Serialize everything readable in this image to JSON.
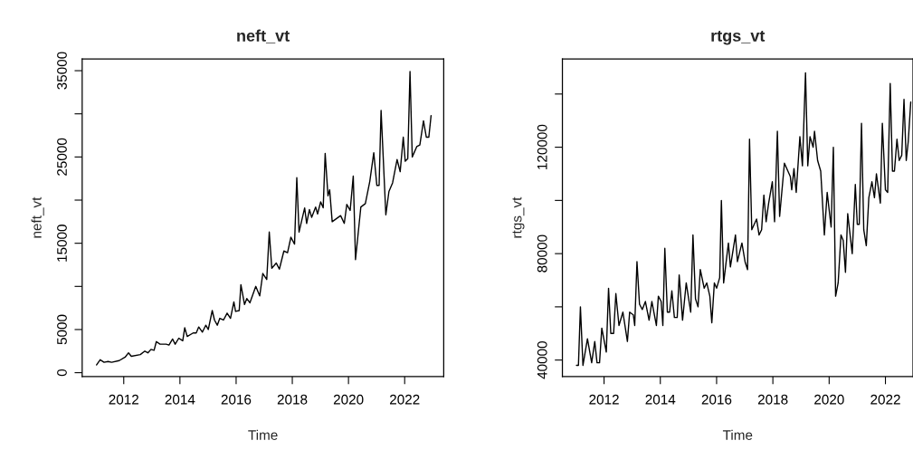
{
  "chart_data": [
    {
      "type": "line",
      "title": "neft_vt",
      "xlabel": "Time",
      "ylabel": "neft_vt",
      "grid": false,
      "line_style": "solid",
      "marker": "none",
      "xlim": [
        2010.52,
        2023.39
      ],
      "xticks": [
        2012,
        2014,
        2016,
        2018,
        2020,
        2022
      ],
      "ylim": [
        -460,
        36360
      ],
      "yticks": [
        0,
        5000,
        {
          "value": 10000,
          "label": null
        },
        15000,
        {
          "value": 20000,
          "label": null
        },
        25000,
        {
          "value": 30000,
          "label": null
        },
        35000
      ],
      "series": [
        {
          "color": "#000000",
          "x": [
            2011.03,
            2011.16,
            2011.3,
            2011.44,
            2011.57,
            2011.84,
            2012.05,
            2012.17,
            2012.27,
            2012.59,
            2012.75,
            2012.86,
            2012.97,
            2013.08,
            2013.16,
            2013.29,
            2013.51,
            2013.61,
            2013.74,
            2013.83,
            2013.96,
            2014.1,
            2014.17,
            2014.26,
            2014.47,
            2014.58,
            2014.67,
            2014.8,
            2014.92,
            2015.01,
            2015.15,
            2015.23,
            2015.33,
            2015.42,
            2015.55,
            2015.68,
            2015.8,
            2015.92,
            2015.98,
            2016.11,
            2016.17,
            2016.3,
            2016.38,
            2016.49,
            2016.7,
            2016.84,
            2016.95,
            2017.09,
            2017.18,
            2017.27,
            2017.43,
            2017.54,
            2017.7,
            2017.83,
            2017.95,
            2018.08,
            2018.16,
            2018.24,
            2018.44,
            2018.51,
            2018.61,
            2018.69,
            2018.83,
            2018.9,
            2019.01,
            2019.1,
            2019.17,
            2019.27,
            2019.33,
            2019.42,
            2019.72,
            2019.85,
            2019.94,
            2020.06,
            2020.17,
            2020.25,
            2020.44,
            2020.6,
            2020.76,
            2020.9,
            2021.01,
            2021.09,
            2021.16,
            2021.33,
            2021.44,
            2021.57,
            2021.73,
            2021.84,
            2021.95,
            2022.02,
            2022.11,
            2022.19,
            2022.27,
            2022.43,
            2022.54,
            2022.67,
            2022.77,
            2022.86,
            2022.94
          ],
          "values": [
            900,
            1500,
            1200,
            1300,
            1200,
            1400,
            1800,
            2300,
            1900,
            2100,
            2500,
            2300,
            2700,
            2600,
            3600,
            3300,
            3300,
            3200,
            3900,
            3300,
            4000,
            3700,
            5200,
            4200,
            4600,
            4600,
            5300,
            4700,
            5500,
            5000,
            7200,
            6100,
            5500,
            6300,
            6100,
            6900,
            6300,
            8200,
            7100,
            7200,
            10200,
            7900,
            8600,
            8100,
            10000,
            8900,
            11500,
            10800,
            16300,
            12100,
            12700,
            12000,
            14100,
            13900,
            15700,
            14900,
            22600,
            16300,
            19100,
            17300,
            18900,
            18000,
            19200,
            18400,
            19800,
            19100,
            25400,
            20500,
            21200,
            17500,
            18200,
            17300,
            19500,
            18800,
            22800,
            13100,
            19200,
            19600,
            22200,
            25500,
            21700,
            21700,
            30400,
            18300,
            21000,
            22000,
            24700,
            23300,
            27300,
            24500,
            24800,
            34900,
            25000,
            26200,
            26400,
            29200,
            27300,
            27300,
            29800
          ]
        }
      ]
    },
    {
      "type": "line",
      "title": "rtgs_vt",
      "xlabel": "Time",
      "ylabel": "rtgs_vt",
      "grid": false,
      "line_style": "solid",
      "marker": "none",
      "xlim": [
        2010.52,
        2022.98
      ],
      "xticks": [
        2012,
        2014,
        2016,
        2018,
        2020,
        2022
      ],
      "ylim": [
        33760,
        153180
      ],
      "yticks": [
        40000,
        {
          "value": 60000,
          "label": null
        },
        80000,
        {
          "value": 100000,
          "label": null
        },
        120000,
        {
          "value": 140000,
          "label": null
        }
      ],
      "series": [
        {
          "color": "#000000",
          "x": [
            2011.02,
            2011.09,
            2011.16,
            2011.25,
            2011.41,
            2011.56,
            2011.67,
            2011.75,
            2011.84,
            2011.92,
            2012.08,
            2012.16,
            2012.24,
            2012.34,
            2012.42,
            2012.53,
            2012.67,
            2012.83,
            2012.91,
            2013.04,
            2013.09,
            2013.17,
            2013.26,
            2013.36,
            2013.47,
            2013.6,
            2013.7,
            2013.86,
            2013.93,
            2014.03,
            2014.09,
            2014.16,
            2014.25,
            2014.33,
            2014.41,
            2014.5,
            2014.6,
            2014.67,
            2014.79,
            2014.92,
            2015.08,
            2015.16,
            2015.25,
            2015.34,
            2015.42,
            2015.56,
            2015.65,
            2015.76,
            2015.83,
            2015.92,
            2016.0,
            2016.11,
            2016.17,
            2016.25,
            2016.42,
            2016.49,
            2016.67,
            2016.74,
            2016.9,
            2017.01,
            2017.1,
            2017.17,
            2017.25,
            2017.42,
            2017.51,
            2017.6,
            2017.68,
            2017.76,
            2017.85,
            2017.98,
            2018.06,
            2018.16,
            2018.24,
            2018.41,
            2018.62,
            2018.67,
            2018.75,
            2018.83,
            2018.96,
            2019.05,
            2019.16,
            2019.24,
            2019.32,
            2019.43,
            2019.48,
            2019.59,
            2019.7,
            2019.83,
            2019.93,
            2020.07,
            2020.15,
            2020.23,
            2020.32,
            2020.42,
            2020.5,
            2020.58,
            2020.66,
            2020.82,
            2020.93,
            2021.0,
            2021.07,
            2021.15,
            2021.23,
            2021.32,
            2021.41,
            2021.52,
            2021.61,
            2021.68,
            2021.82,
            2021.89,
            2022.0,
            2022.08,
            2022.17,
            2022.25,
            2022.32,
            2022.41,
            2022.49,
            2022.58,
            2022.66,
            2022.74,
            2022.81,
            2022.9
          ],
          "values": [
            38000,
            38000,
            60000,
            38000,
            48000,
            39000,
            47000,
            39000,
            39000,
            52000,
            43000,
            67000,
            50000,
            50000,
            65000,
            53000,
            58000,
            47000,
            58000,
            57000,
            53000,
            77000,
            61000,
            59000,
            62000,
            55000,
            62000,
            53000,
            64000,
            62000,
            53000,
            82000,
            58000,
            58000,
            66000,
            56000,
            56000,
            72000,
            55000,
            69000,
            58000,
            87000,
            63000,
            60000,
            74000,
            67000,
            69000,
            64000,
            54000,
            69000,
            67000,
            71000,
            100000,
            69000,
            84000,
            75000,
            87000,
            77000,
            84000,
            77000,
            74000,
            123000,
            89000,
            93000,
            87000,
            89000,
            102000,
            92000,
            99000,
            107000,
            92000,
            126000,
            94000,
            114000,
            109000,
            104000,
            112000,
            103000,
            124000,
            113000,
            148000,
            113000,
            124000,
            120000,
            126000,
            115000,
            111000,
            87000,
            103000,
            90000,
            120000,
            64000,
            69000,
            87000,
            85000,
            73000,
            95000,
            80000,
            106000,
            91000,
            91000,
            129000,
            89000,
            83000,
            101000,
            107000,
            101000,
            110000,
            99000,
            129000,
            104000,
            103000,
            144000,
            111000,
            111000,
            123000,
            115000,
            117000,
            138000,
            115000,
            122000,
            137000
          ]
        }
      ]
    }
  ]
}
